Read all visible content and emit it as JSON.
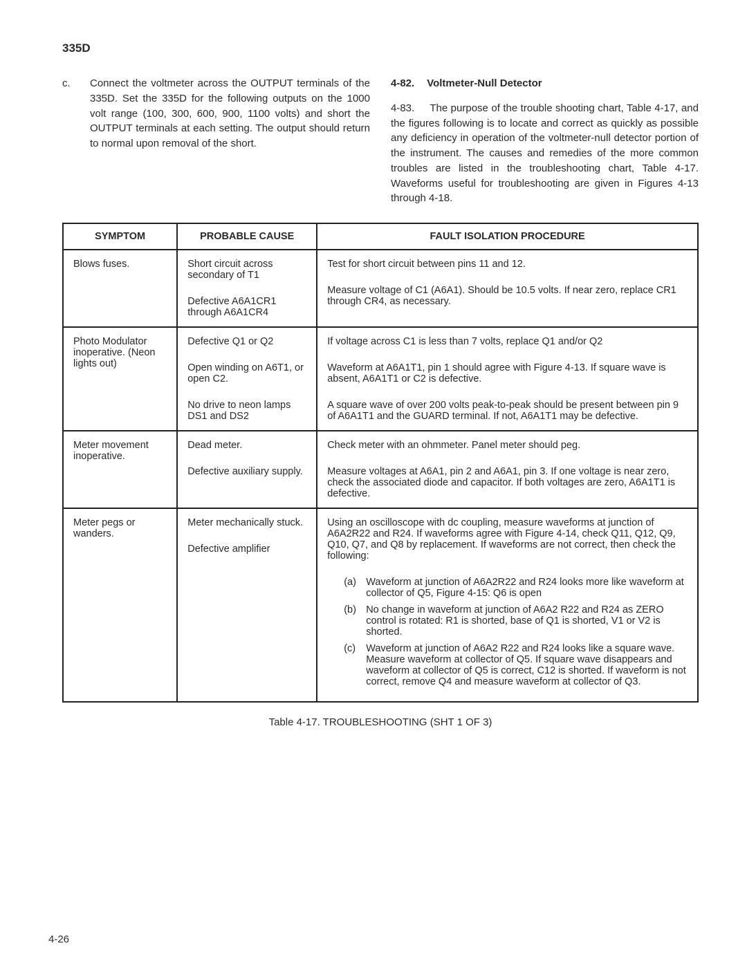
{
  "model": "335D",
  "left_item": {
    "letter": "c.",
    "text": "Connect the voltmeter across the OUTPUT terminals of the 335D. Set the 335D for the following outputs on the 1000 volt range (100, 300, 600, 900, 1100 volts) and short the OUTPUT terminals at each setting. The output should return to normal upon removal of the short."
  },
  "right_heading": {
    "num": "4-82.",
    "title": "Voltmeter-Null Detector"
  },
  "right_para": {
    "num": "4-83.",
    "text": "The purpose of the trouble shooting chart, Table 4-17, and the figures following is to locate and correct as quickly as possible any deficiency in operation of the voltmeter-null detector portion of the instrument. The causes and remedies of the more common troubles are listed in the troubleshooting chart, Table 4-17. Waveforms useful for troubleshooting are given in Figures 4-13 through 4-18."
  },
  "table": {
    "headers": [
      "SYMPTOM",
      "PROBABLE CAUSE",
      "FAULT ISOLATION PROCEDURE"
    ],
    "rows": [
      {
        "symptom": "Blows fuses.",
        "causes": [
          "Short circuit across secondary of T1",
          "Defective A6A1CR1 through A6A1CR4"
        ],
        "procedures": [
          "Test for short circuit between pins 11 and 12.",
          "Measure voltage of C1 (A6A1). Should be 10.5 volts. If near zero, replace CR1 through CR4, as necessary."
        ]
      },
      {
        "symptom": "Photo Modulator inoperative. (Neon lights out)",
        "causes": [
          "Defective Q1 or Q2",
          "Open winding on A6T1, or open C2.",
          "No drive to neon lamps DS1 and DS2"
        ],
        "procedures": [
          "If voltage across C1 is less than 7 volts, replace Q1 and/or Q2",
          "Waveform at A6A1T1, pin 1 should agree with Figure 4-13. If square wave is absent, A6A1T1 or C2 is defective.",
          "A square wave of over 200 volts peak-to-peak should be present between pin 9 of A6A1T1 and the GUARD terminal. If not, A6A1T1 may be defective."
        ]
      },
      {
        "symptom": "Meter movement inoperative.",
        "causes": [
          "Dead meter.",
          "Defective auxiliary supply."
        ],
        "procedures": [
          "Check meter with an ohmmeter. Panel meter should peg.",
          "Measure voltages at A6A1, pin 2 and A6A1, pin 3. If one voltage is near zero, check the associated diode and capacitor. If both voltages are zero, A6A1T1 is defective."
        ]
      },
      {
        "symptom": "Meter pegs or wanders.",
        "causes": [
          "Meter mechanically stuck.",
          "Defective amplifier"
        ],
        "procedures_intro": "Using an oscilloscope with dc coupling, measure waveforms at junction of A6A2R22 and R24. If waveforms agree with Figure 4-14, check Q11, Q12, Q9, Q10, Q7, and Q8 by replacement. If waveforms are not correct, then check the following:",
        "sub_items": [
          {
            "letter": "(a)",
            "text": "Waveform at junction of A6A2R22 and R24 looks more like waveform at collector of Q5, Figure 4-15: Q6 is open"
          },
          {
            "letter": "(b)",
            "text": "No change in waveform at junction of A6A2 R22 and R24 as ZERO control is rotated: R1 is shorted, base of Q1 is shorted, V1 or V2 is shorted."
          },
          {
            "letter": "(c)",
            "text": "Waveform at junction of A6A2 R22 and R24 looks like a square wave. Measure waveform at collector of Q5. If square wave disappears and waveform at collector of Q5 is correct, C12 is shorted. If waveform is not correct, remove Q4 and measure waveform at collector of Q3."
          }
        ]
      }
    ]
  },
  "caption": "Table 4-17. TROUBLESHOOTING (SHT 1 OF 3)",
  "page_number": "4-26"
}
